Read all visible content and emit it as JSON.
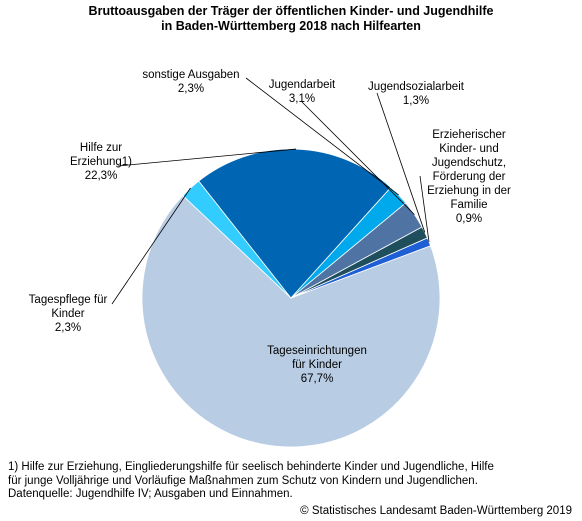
{
  "chart_data": {
    "type": "pie",
    "title": [
      "Bruttoausgaben der Träger der öffentlichen Kinder- und Jugendhilfe",
      "in Baden-Württemberg 2018 nach Hilfearten"
    ],
    "slices": [
      {
        "label": [
          "Tageseinrichtungen",
          "für Kinder"
        ],
        "value_label": "67,7%",
        "value": 67.7,
        "color": "#b8cce4"
      },
      {
        "label": [
          "Tagespflege für",
          "Kinder"
        ],
        "value_label": "2,3%",
        "value": 2.3,
        "color": "#33ccff"
      },
      {
        "label": [
          "Hilfe zur",
          "Erziehung1)"
        ],
        "value_label": "22,3%",
        "value": 22.3,
        "color": "#0066b3"
      },
      {
        "label": [
          "sonstige Ausgaben"
        ],
        "value_label": "2,3%",
        "value": 2.3,
        "color": "#00a9ec"
      },
      {
        "label": [
          "Jugendarbeit"
        ],
        "value_label": "3,1%",
        "value": 3.1,
        "color": "#4f74a4"
      },
      {
        "label": [
          "Jugendsozialarbeit"
        ],
        "value_label": "1,3%",
        "value": 1.3,
        "color": "#1f4e5c"
      },
      {
        "label": [
          "Erzieherischer",
          "Kinder- und",
          "Jugendschutz,",
          "Förderung der",
          "Erziehung in der",
          "Familie"
        ],
        "value_label": "0,9%",
        "value": 0.9,
        "color": "#1f5fd6"
      }
    ]
  },
  "footnote": [
    "1) Hilfe zur Erziehung, Eingliederungshilfe für seelisch behinderte Kinder und Jugendliche, Hilfe",
    "für junge Volljährige und Vorläufige Maßnahmen zum Schutz von Kindern und Jugendlichen.",
    "Datenquelle: Jugendhilfe IV; Ausgaben und Einnahmen."
  ],
  "copyright": "© Statistisches Landesamt Baden-Württemberg 2019"
}
